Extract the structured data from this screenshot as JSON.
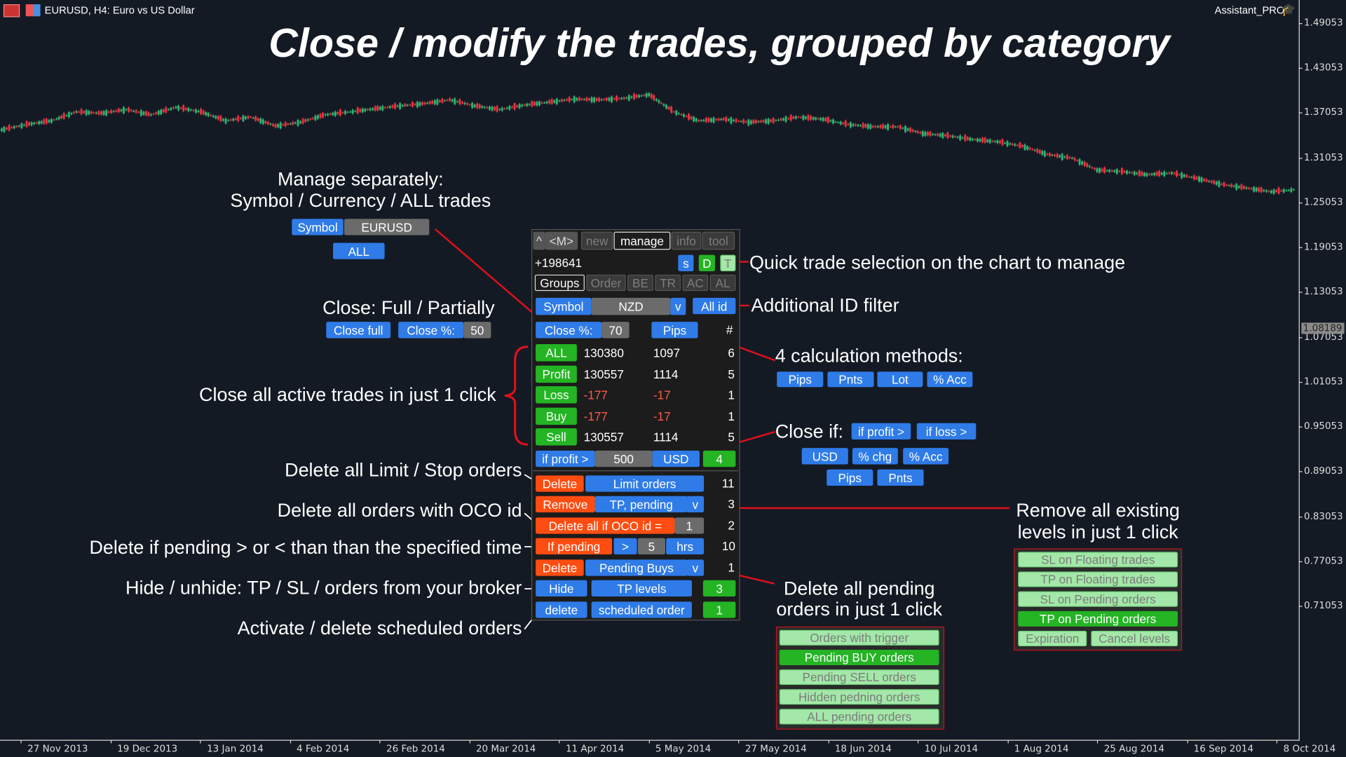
{
  "window": {
    "title": "EURUSD, H4:  Euro vs US Dollar",
    "expert_name": "Assistant_PRO"
  },
  "headline": "Close / modify the trades, grouped by category",
  "chart": {
    "price_axis": [
      "1.49053",
      "1.43053",
      "1.37053",
      "1.31053",
      "1.25053",
      "1.19053",
      "1.13053",
      "1.07053",
      "1.01053",
      "0.95053",
      "0.89053",
      "0.83053",
      "0.77053",
      "0.71053"
    ],
    "current_price": "1.08189",
    "time_axis": [
      "27 Nov 2013",
      "19 Dec 2013",
      "13 Jan 2014",
      "4 Feb 2014",
      "26 Feb 2014",
      "20 Mar 2014",
      "11 Apr 2014",
      "5 May 2014",
      "27 May 2014",
      "18 Jun 2014",
      "10 Jul 2014",
      "1 Aug 2014",
      "25 Aug 2014",
      "16 Sep 2014",
      "8 Oct 2014"
    ],
    "closes": [
      1.348,
      1.355,
      1.36,
      1.372,
      1.37,
      1.375,
      1.368,
      1.378,
      1.372,
      1.36,
      1.365,
      1.353,
      1.358,
      1.368,
      1.372,
      1.376,
      1.38,
      1.383,
      1.388,
      1.38,
      1.375,
      1.381,
      1.385,
      1.389,
      1.388,
      1.39,
      1.395,
      1.372,
      1.36,
      1.362,
      1.358,
      1.36,
      1.365,
      1.362,
      1.355,
      1.352,
      1.352,
      1.343,
      1.34,
      1.335,
      1.332,
      1.326,
      1.315,
      1.31,
      1.294,
      1.292,
      1.288,
      1.29,
      1.283,
      1.275,
      1.27,
      1.265,
      1.268
    ],
    "up_color": "#2bb673",
    "down_color": "#e8333f"
  },
  "annotations": {
    "manage_separately": [
      "Manage separately:",
      "Symbol / Currency / ALL trades"
    ],
    "close_full_partially": "Close: Full / Partially",
    "close_all": "Close all active trades in just 1 click",
    "quick_selection": "Quick trade selection on the chart to manage",
    "id_filter": "Additional ID filter",
    "calc_methods": "4 calculation methods:",
    "close_if": "Close if:",
    "delete_limit_stop": "Delete all Limit / Stop orders",
    "delete_oco": "Delete all orders with OCO id",
    "delete_pending_time": "Delete if pending > or < than than the specified time",
    "hide_unhide": "Hide / unhide:  TP / SL / orders  from your broker",
    "scheduled": "Activate / delete scheduled orders",
    "remove_levels": [
      "Remove all existing",
      "levels in just 1 click"
    ],
    "delete_pending": [
      "Delete all pending",
      "orders in just 1 click"
    ]
  },
  "demo_buttons": {
    "symbol": "Symbol",
    "symbol_value": "EURUSD",
    "all": "ALL",
    "close_full": "Close full",
    "close_pct": "Close %:",
    "close_pct_value": "50",
    "calc": [
      "Pips",
      "Pnts",
      "Lot",
      "% Acc"
    ],
    "close_if": [
      "if profit >",
      "if loss >"
    ],
    "close_if_units_1": [
      "USD",
      "% chg",
      "% Acc"
    ],
    "close_if_units_2": [
      "Pips",
      "Pnts"
    ]
  },
  "panel": {
    "collapse": "^",
    "mode": "<M>",
    "tabs": [
      "new",
      "manage",
      "info",
      "tool"
    ],
    "active_tab": "manage",
    "balance": "+198641",
    "quick": [
      "s",
      "D",
      "T"
    ],
    "subtabs": [
      "Groups",
      "Order",
      "BE",
      "TR",
      "AC",
      "AL"
    ],
    "active_subtab": "Groups",
    "filter": {
      "type": "Symbol",
      "value": "NZD",
      "dropdown": "v",
      "id": "All id"
    },
    "close_pct": {
      "label": "Close %:",
      "value": "70",
      "method": "Pips",
      "count_header": "#"
    },
    "rows": [
      {
        "label": "ALL",
        "profit": "130380",
        "pips": "1097",
        "count": "6"
      },
      {
        "label": "Profit",
        "profit": "130557",
        "pips": "1114",
        "count": "5"
      },
      {
        "label": "Loss",
        "profit": "-177",
        "pips": "-17",
        "count": "1"
      },
      {
        "label": "Buy",
        "profit": "-177",
        "pips": "-17",
        "count": "1"
      },
      {
        "label": "Sell",
        "profit": "130557",
        "pips": "1114",
        "count": "5"
      }
    ],
    "if_profit": {
      "label": "if profit >",
      "value": "500",
      "unit": "USD",
      "count": "4"
    },
    "orders": {
      "delete_limit": {
        "action": "Delete",
        "target": "Limit orders",
        "count": "11"
      },
      "remove": {
        "action": "Remove",
        "target": "TP, pending",
        "dropdown": "v",
        "count": "3"
      },
      "oco": {
        "action": "Delete all if OCO id =",
        "value": "1",
        "count": "2"
      },
      "if_pending": {
        "action": "If pending",
        "op": ">",
        "value": "5",
        "unit": "hrs",
        "count": "10"
      },
      "delete_pending": {
        "action": "Delete",
        "target": "Pending Buys",
        "dropdown": "v",
        "count": "1"
      },
      "hide": {
        "action": "Hide",
        "target": "TP levels",
        "count": "3"
      },
      "scheduled": {
        "action": "delete",
        "target": "scheduled order",
        "count": "1"
      }
    }
  },
  "remove_menu": {
    "items": [
      "SL on Floating trades",
      "TP on Floating trades",
      "SL on Pending orders",
      "TP on Pending orders"
    ],
    "selected": "TP on Pending orders",
    "bottom": [
      "Expiration",
      "Cancel levels"
    ]
  },
  "pending_menu": {
    "items": [
      "Orders with trigger",
      "Pending BUY orders",
      "Pending SELL orders",
      "Hidden pedning orders",
      "ALL pending orders"
    ],
    "selected": "Pending BUY orders"
  }
}
